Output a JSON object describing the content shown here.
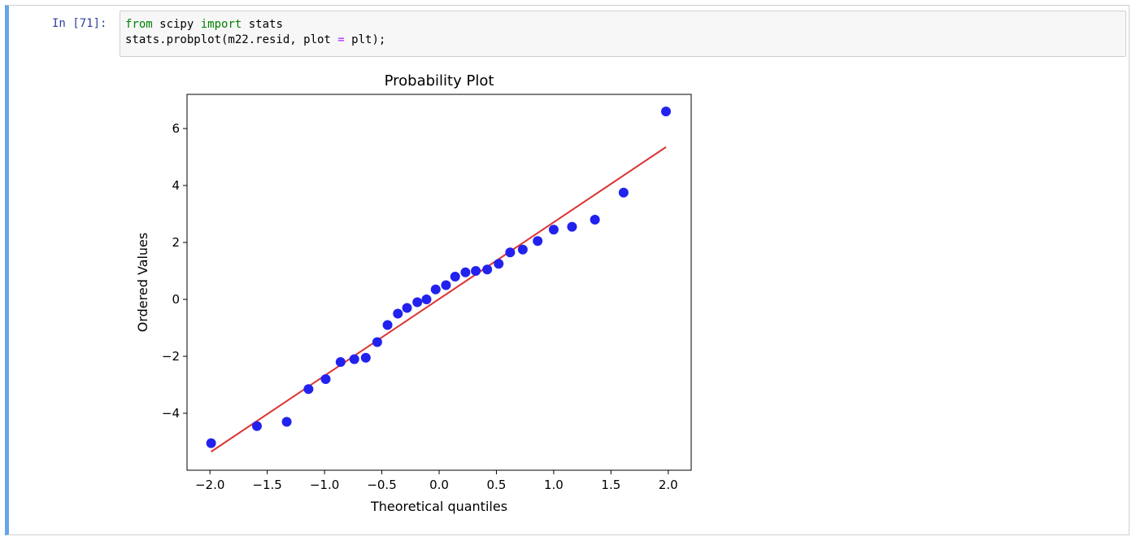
{
  "cell": {
    "prompt": "In [71]:",
    "code": {
      "line1": {
        "kw1": "from",
        "mod": " scipy ",
        "kw2": "import",
        "rest": " stats"
      },
      "line2": {
        "pre": "stats.probplot(m22.resid, plot ",
        "op": "=",
        "post": " plt);"
      }
    }
  },
  "chart_data": {
    "type": "scatter",
    "title": "Probability Plot",
    "xlabel": "Theoretical quantiles",
    "ylabel": "Ordered Values",
    "xlim": [
      -2.2,
      2.2
    ],
    "ylim": [
      -6.0,
      7.2
    ],
    "xticks": [
      -2.0,
      -1.5,
      -1.0,
      -0.5,
      0.0,
      0.5,
      1.0,
      1.5,
      2.0
    ],
    "xtick_labels": [
      "−2.0",
      "−1.5",
      "−1.0",
      "−0.5",
      "0.0",
      "0.5",
      "1.0",
      "1.5",
      "2.0"
    ],
    "yticks": [
      -4,
      -2,
      0,
      2,
      4,
      6
    ],
    "ytick_labels": [
      "−4",
      "−2",
      "0",
      "2",
      "4",
      "6"
    ],
    "points": {
      "color": "#2222ee",
      "x": [
        -1.99,
        -1.59,
        -1.33,
        -1.14,
        -0.99,
        -0.86,
        -0.74,
        -0.64,
        -0.54,
        -0.45,
        -0.36,
        -0.28,
        -0.19,
        -0.11,
        -0.03,
        0.06,
        0.14,
        0.23,
        0.32,
        0.42,
        0.52,
        0.62,
        0.73,
        0.86,
        1.0,
        1.16,
        1.36,
        1.61,
        1.98
      ],
      "y": [
        -5.05,
        -4.45,
        -4.3,
        -3.15,
        -2.8,
        -2.2,
        -2.1,
        -2.05,
        -1.5,
        -0.9,
        -0.5,
        -0.3,
        -0.1,
        0.0,
        0.35,
        0.5,
        0.8,
        0.95,
        1.0,
        1.05,
        1.25,
        1.65,
        1.75,
        2.05,
        2.45,
        2.55,
        2.8,
        3.75,
        6.6
      ]
    },
    "fit_line": {
      "color": "#dd3333",
      "x": [
        -1.99,
        1.98
      ],
      "y": [
        -5.35,
        5.35
      ]
    },
    "grid": false,
    "legend": "none"
  }
}
